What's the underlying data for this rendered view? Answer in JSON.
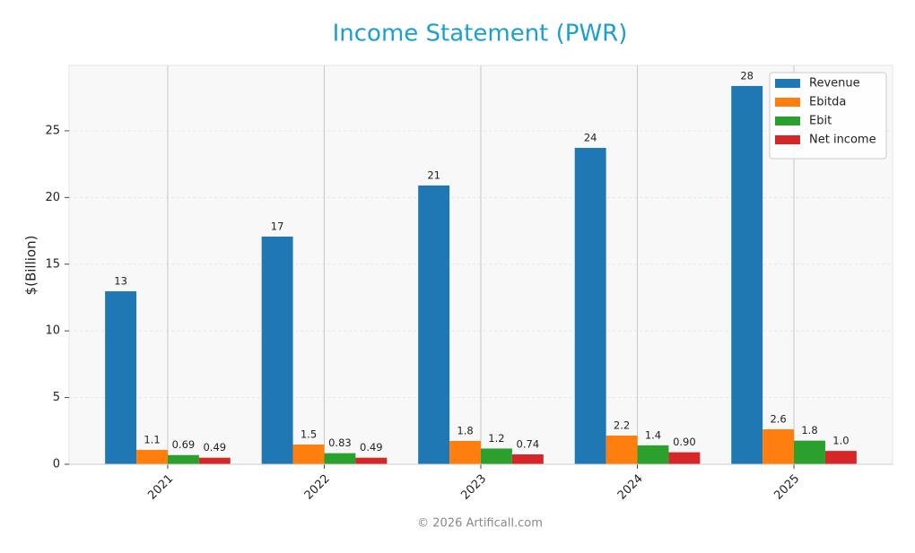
{
  "chart_data": {
    "type": "bar",
    "title": "Income Statement (PWR)",
    "ylabel": "$(Billion)",
    "categories": [
      "2021",
      "2022",
      "2023",
      "2024",
      "2025"
    ],
    "series": [
      {
        "name": "Revenue",
        "color": "#1f77b4",
        "values": [
          12.97,
          17.07,
          20.9,
          23.72,
          28.36
        ],
        "value_labels": [
          "13",
          "17",
          "21",
          "24",
          "28"
        ]
      },
      {
        "name": "Ebitda",
        "color": "#ff7f0e",
        "values": [
          1.08,
          1.48,
          1.75,
          2.15,
          2.62
        ],
        "value_labels": [
          "1.1",
          "1.5",
          "1.8",
          "2.2",
          "2.6"
        ]
      },
      {
        "name": "Ebit",
        "color": "#2ca02c",
        "values": [
          0.69,
          0.83,
          1.18,
          1.42,
          1.77
        ],
        "value_labels": [
          "0.69",
          "0.83",
          "1.2",
          "1.4",
          "1.8"
        ]
      },
      {
        "name": "Net income",
        "color": "#d62728",
        "values": [
          0.49,
          0.49,
          0.74,
          0.9,
          1.0
        ],
        "value_labels": [
          "0.49",
          "0.49",
          "0.74",
          "0.90",
          "1.0"
        ]
      }
    ],
    "ylim": [
      0,
      29.9
    ],
    "yticks": [
      0,
      5,
      10,
      15,
      20,
      25
    ],
    "grid": true,
    "legend": "upper right",
    "footer": "© 2026 Artificall.com"
  }
}
